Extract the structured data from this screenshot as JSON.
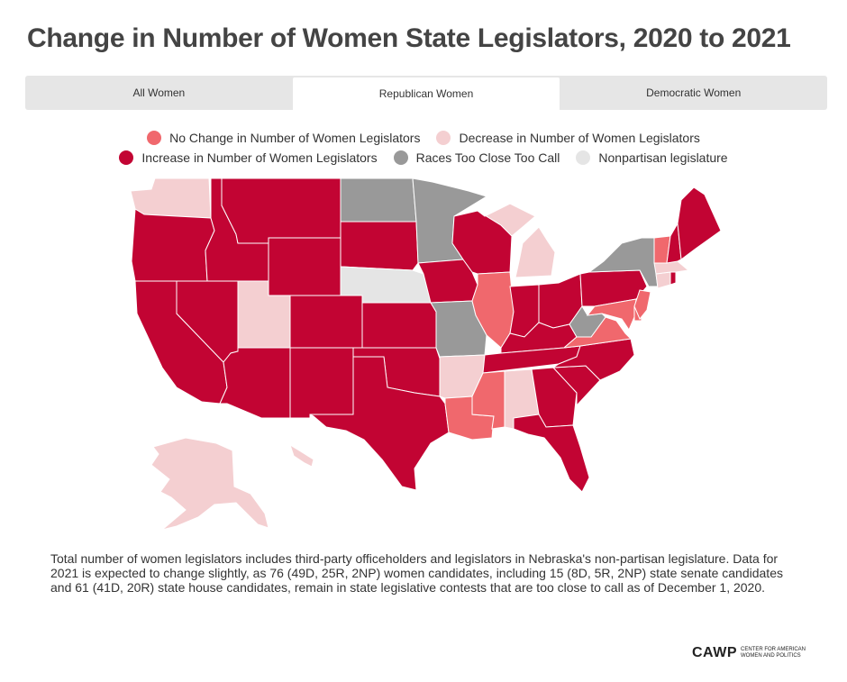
{
  "title": "Change in Number of Women State Legislators, 2020 to 2021",
  "tabs": [
    {
      "label": "All Women",
      "active": false
    },
    {
      "label": "Republican Women",
      "active": true
    },
    {
      "label": "Democratic Women",
      "active": false
    }
  ],
  "legend": {
    "row1": [
      {
        "label": "No Change in Number of Women Legislators",
        "color": "#f0686d"
      },
      {
        "label": "Decrease in Number of Women Legislators",
        "color": "#f4cfd1"
      }
    ],
    "row2": [
      {
        "label": "Increase in Number of Women Legislators",
        "color": "#c20433"
      },
      {
        "label": "Races Too Close Too Call",
        "color": "#999999"
      },
      {
        "label": "Nonpartisan legislature",
        "color": "#e5e5e5"
      }
    ]
  },
  "colors": {
    "increase": "#c20433",
    "no_change": "#f0686d",
    "decrease": "#f4cfd1",
    "too_close": "#999999",
    "nonpartisan": "#e5e5e5"
  },
  "state_status": {
    "WA": "decrease",
    "OR": "increase",
    "CA": "increase",
    "NV": "increase",
    "ID": "increase",
    "MT": "increase",
    "WY": "increase",
    "UT": "decrease",
    "AZ": "increase",
    "CO": "increase",
    "NM": "increase",
    "ND": "too_close",
    "SD": "increase",
    "NE": "nonpartisan",
    "KS": "increase",
    "OK": "increase",
    "TX": "increase",
    "MN": "too_close",
    "IA": "increase",
    "MO": "too_close",
    "AR": "decrease",
    "LA": "no_change",
    "WI": "increase",
    "IL": "no_change",
    "MI": "decrease",
    "IN": "increase",
    "OH": "increase",
    "KY": "increase",
    "TN": "increase",
    "MS": "no_change",
    "AL": "decrease",
    "GA": "increase",
    "FL": "increase",
    "SC": "increase",
    "NC": "increase",
    "VA": "no_change",
    "WV": "too_close",
    "MD": "no_change",
    "DE": "no_change",
    "PA": "increase",
    "NJ": "no_change",
    "NY": "too_close",
    "CT": "decrease",
    "RI": "increase",
    "MA": "decrease",
    "VT": "no_change",
    "NH": "increase",
    "ME": "increase",
    "AK": "decrease",
    "HI": "decrease"
  },
  "footnote": "Total number of women legislators includes third-party officeholders and legislators in Nebraska's non-partisan legislature. Data for 2021 is expected to change slightly, as 76 (49D, 25R, 2NP) women candidates, including 15 (8D, 5R, 2NP) state senate candidates and 61 (41D, 20R) state house candidates, remain in state legislative contests that are too close to call as of December 1, 2020.",
  "logo": {
    "mark": "CAWP",
    "line1": "CENTER FOR AMERICAN",
    "line2": "WOMEN AND POLITICS"
  }
}
